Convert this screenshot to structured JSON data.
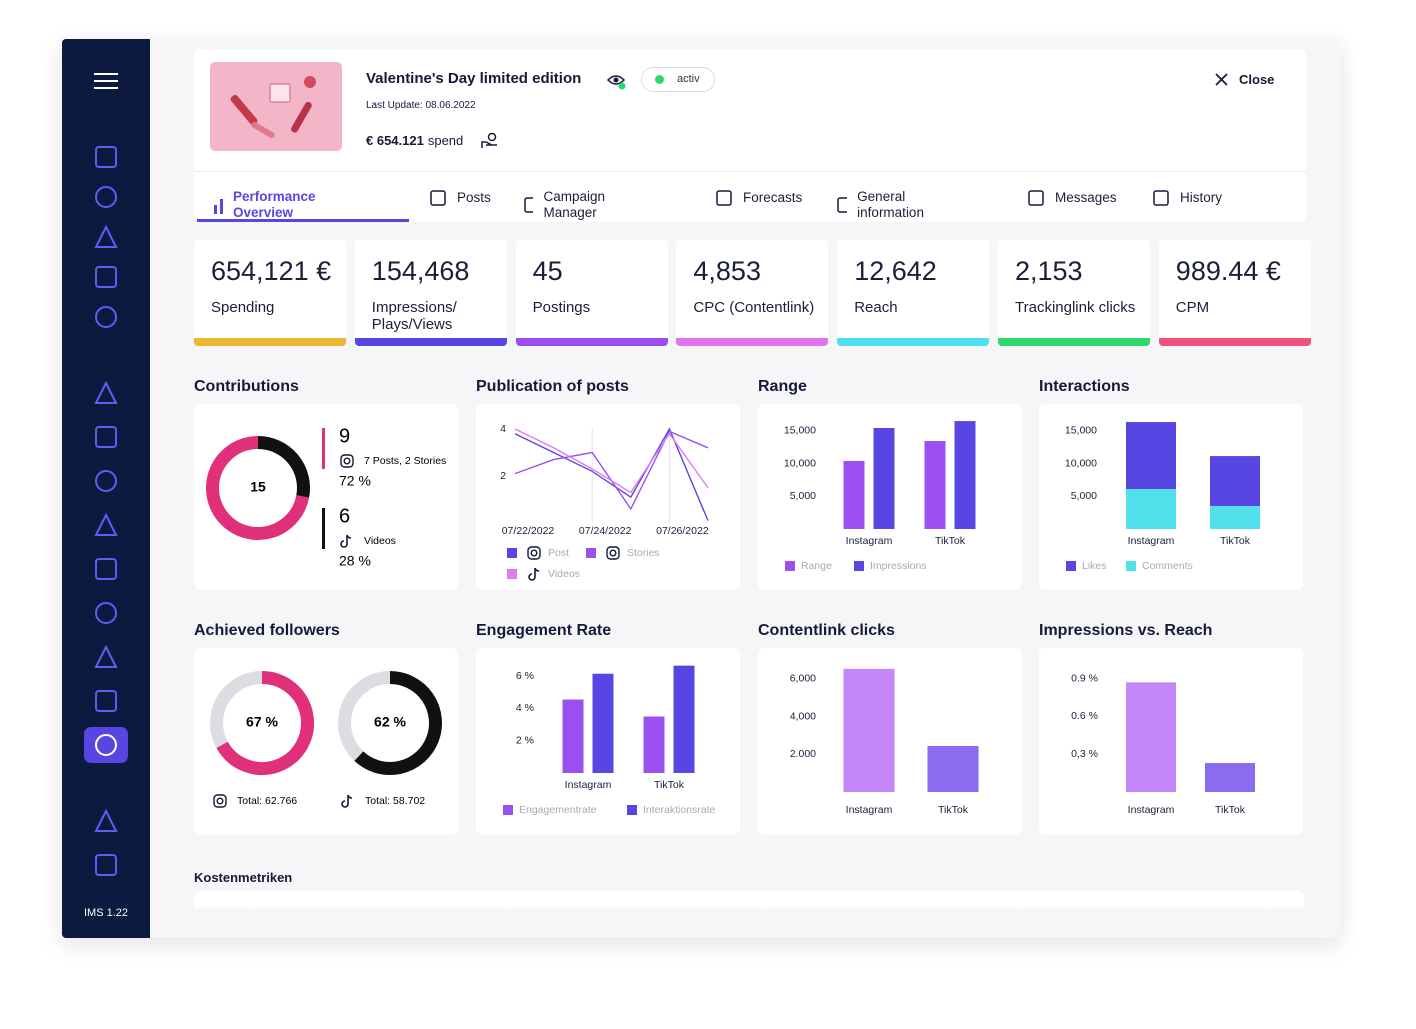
{
  "sidebar": {
    "version": "IMS 1.22"
  },
  "header": {
    "title": "Valentine's Day limited edition",
    "status": "activ",
    "last_update": "Last Update: 08.06.2022",
    "spend_amount": "€ 654.121",
    "spend_label": "spend",
    "close": "Close"
  },
  "tabs": [
    "Performance Overview",
    "Posts",
    "Campaign Manager",
    "Forecasts",
    "General information",
    "Messages",
    "History"
  ],
  "kpis": [
    {
      "value": "654,121 €",
      "label": "Spending",
      "color": "#e8b832"
    },
    {
      "value": "154,468",
      "label": "Impressions/ Plays/Views",
      "color": "#5846e2"
    },
    {
      "value": "45",
      "label": "Postings",
      "color": "#9b4ff0"
    },
    {
      "value": "4,853",
      "label": "CPC (Contentlink)",
      "color": "#e274f0"
    },
    {
      "value": "12,642",
      "label": "Reach",
      "color": "#4fdfee"
    },
    {
      "value": "2,153",
      "label": "Trackinglink clicks",
      "color": "#2fd86c"
    },
    {
      "value": "989.44 €",
      "label": "CPM",
      "color": "#f0517c"
    }
  ],
  "section_title": "Kostenmetriken",
  "chart_data": [
    {
      "type": "donut",
      "title": "Contributions",
      "total": 15,
      "segments": [
        {
          "count": 9,
          "detail": "7 Posts, 2 Stories",
          "value": 72,
          "value_label": "72 %",
          "color": "#e0307a"
        },
        {
          "count": 6,
          "detail": "Videos",
          "value": 28,
          "value_label": "28 %",
          "color": "#111111"
        }
      ]
    },
    {
      "type": "line",
      "title": "Publication of posts",
      "categories": [
        "07/22/2022",
        null,
        "07/24/2022",
        null,
        "07/26/2022",
        null
      ],
      "series": [
        {
          "name": "Post",
          "color": "#5846e2",
          "values": [
            3.8,
            3.0,
            2.2,
            1.1,
            4.0,
            0.1
          ]
        },
        {
          "name": "Stories",
          "color": "#9b4ff0",
          "values": [
            2.1,
            2.7,
            3.0,
            0.6,
            3.9,
            3.2
          ]
        },
        {
          "name": "Videos",
          "color": "#e07af0",
          "values": [
            4.0,
            3.2,
            2.3,
            1.3,
            3.8,
            1.5
          ]
        }
      ],
      "ylim": [
        0,
        4.4
      ],
      "yticks": [
        2,
        4
      ]
    },
    {
      "type": "bar",
      "title": "Range",
      "categories": [
        "Instagram",
        "TikTok"
      ],
      "series": [
        {
          "name": "Range",
          "color": "#9b4ff0",
          "values": [
            10400,
            13450
          ]
        },
        {
          "name": "Impressions",
          "color": "#5846e2",
          "values": [
            15440,
            16500
          ]
        }
      ],
      "ylim": [
        0,
        17000
      ],
      "yticks": [
        {
          "value": 5000,
          "label": "5,000"
        },
        {
          "value": 10000,
          "label": "10,000"
        },
        {
          "value": 15000,
          "label": "15,000"
        }
      ]
    },
    {
      "type": "bar",
      "title": "Interactions",
      "stacked": true,
      "categories": [
        "Instagram",
        "TikTok"
      ],
      "series": [
        {
          "name": "Likes",
          "color": "#5846e2",
          "values": [
            10250,
            7650
          ]
        },
        {
          "name": "Comments",
          "color": "#50e0ec",
          "values": [
            6100,
            3500
          ]
        }
      ],
      "ylim": [
        0,
        17000
      ],
      "yticks": [
        {
          "value": 5000,
          "label": "5,000"
        },
        {
          "value": 10000,
          "label": "10,000"
        },
        {
          "value": 15000,
          "label": "15,000"
        }
      ]
    },
    {
      "type": "gauge",
      "title": "Achieved followers",
      "items": [
        {
          "value": 67,
          "value_label": "67 %",
          "total_label": "Total: 62.766",
          "color": "#e0307a"
        },
        {
          "value": 62,
          "value_label": "62 %",
          "total_label": "Total: 58.702",
          "color": "#111111"
        }
      ]
    },
    {
      "type": "bar",
      "title": "Engagement Rate",
      "categories": [
        "Instagram",
        "TikTok"
      ],
      "series": [
        {
          "name": "Engagementrate",
          "color": "#9b4ff0",
          "values": [
            4.55,
            3.5
          ]
        },
        {
          "name": "Interaktionsrate",
          "color": "#5846e2",
          "values": [
            6.15,
            6.65
          ]
        }
      ],
      "ylim": [
        0,
        7
      ],
      "yticks": [
        {
          "value": 2,
          "label": "2 %"
        },
        {
          "value": 4,
          "label": "4 %"
        },
        {
          "value": 6,
          "label": "6 %"
        }
      ]
    },
    {
      "type": "bar",
      "title": "Contentlink clicks",
      "categories": [
        "Instagram",
        "TikTok"
      ],
      "series": [
        {
          "colors": [
            "#c486f9",
            "#8b6cf0"
          ],
          "values": [
            6530,
            2440
          ]
        }
      ],
      "ylim": [
        0,
        7000
      ],
      "yticks": [
        {
          "value": 2000,
          "label": "2.000"
        },
        {
          "value": 4000,
          "label": "4,000"
        },
        {
          "value": 6000,
          "label": "6,000"
        }
      ]
    },
    {
      "type": "bar",
      "title": "Impressions vs. Reach",
      "categories": [
        "Instagram",
        "TikTok"
      ],
      "series": [
        {
          "colors": [
            "#c486f9",
            "#8b6cf0"
          ],
          "values": [
            0.87,
            0.23
          ]
        }
      ],
      "ylim": [
        0,
        1.0
      ],
      "yticks": [
        {
          "value": 0.3,
          "label": "0,3 %"
        },
        {
          "value": 0.6,
          "label": "0.6 %"
        },
        {
          "value": 0.9,
          "label": "0.9 %"
        }
      ]
    }
  ]
}
